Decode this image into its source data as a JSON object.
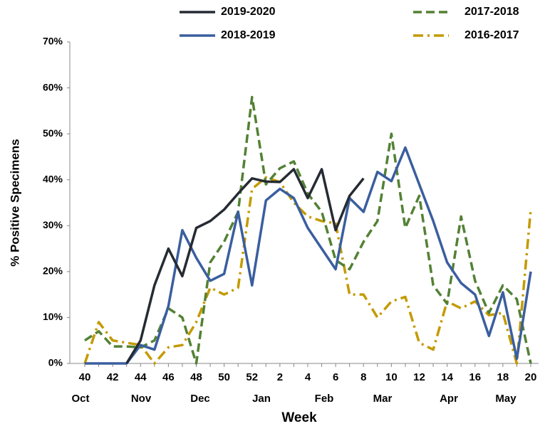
{
  "chart_data": {
    "type": "line",
    "x_label": "Week",
    "y_label": "% Positive Specimens",
    "categories": [
      "40",
      null,
      "42",
      null,
      "44",
      null,
      "46",
      null,
      "48",
      null,
      "50",
      null,
      "52",
      null,
      "2",
      null,
      "4",
      null,
      "6",
      null,
      "8",
      null,
      "10",
      null,
      "12",
      null,
      "14",
      null,
      "16",
      null,
      "18",
      null,
      "20"
    ],
    "month_labels": [
      "Oct",
      "Nov",
      "Dec",
      "Jan",
      "Feb",
      "Mar",
      "Apr",
      "May"
    ],
    "ylim": [
      0,
      70
    ],
    "yticks": [
      {
        "value": 0,
        "label": "0%"
      },
      {
        "value": 10,
        "label": "10%"
      },
      {
        "value": 20,
        "label": "20%"
      },
      {
        "value": 30,
        "label": "30%"
      },
      {
        "value": 40,
        "label": "40%"
      },
      {
        "value": 50,
        "label": "50%"
      },
      {
        "value": 60,
        "label": "60%"
      },
      {
        "value": 70,
        "label": "70%"
      }
    ],
    "grid": false,
    "legend": "top",
    "series": [
      {
        "name": "2019-2020",
        "color": "#262b33",
        "dash": "solid",
        "values": [
          null,
          null,
          null,
          0,
          5,
          17,
          25,
          19,
          29.5,
          31,
          33.5,
          37,
          40.3,
          39.6,
          39.5,
          42.3,
          36,
          42.3,
          29,
          36.5,
          40.3,
          null,
          null,
          null,
          null,
          null,
          null,
          null,
          null,
          null,
          null,
          null,
          null
        ]
      },
      {
        "name": "2018-2019",
        "color": "#3a5e9f",
        "dash": "solid",
        "values": [
          0,
          0,
          0,
          0,
          4,
          3,
          12.5,
          29,
          23,
          18,
          19.5,
          33,
          17,
          35.5,
          38,
          36,
          29.5,
          25,
          20.5,
          36,
          33,
          41.7,
          39.7,
          47,
          39,
          31,
          22,
          17.5,
          15,
          6,
          15.5,
          1,
          20
        ]
      },
      {
        "name": "2017-2018",
        "color": "#538135",
        "dash": "dashed",
        "values": [
          5,
          7,
          3.7,
          3.7,
          3.5,
          5,
          12,
          10,
          0,
          22,
          26.5,
          33,
          58,
          39,
          42.5,
          44,
          37,
          33,
          22.5,
          20.5,
          26.5,
          31,
          50,
          29.5,
          36.5,
          17,
          13,
          32,
          18,
          11,
          17,
          14,
          0
        ]
      },
      {
        "name": "2016-2017",
        "color": "#c49a00",
        "dash": "dashdot",
        "values": [
          0,
          9,
          5,
          4.5,
          4,
          0,
          3.5,
          4,
          9,
          16.5,
          15,
          16.5,
          38,
          40.5,
          39.5,
          35,
          32,
          31,
          30.5,
          15,
          15,
          10,
          13.5,
          14.5,
          4.5,
          3,
          13.5,
          12,
          13.5,
          10.5,
          11,
          0,
          33.5
        ]
      }
    ]
  }
}
